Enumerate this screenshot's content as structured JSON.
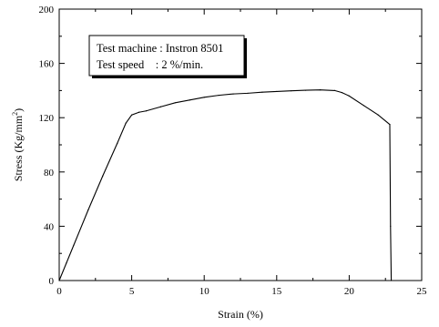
{
  "chart_data": {
    "type": "line",
    "xlabel": "Strain (%)",
    "ylabel": "Stress (Kg/mm",
    "ylabel_sup": "2",
    "ylabel_close": ")",
    "xlim": [
      0,
      25
    ],
    "ylim": [
      0,
      200
    ],
    "x_ticks": [
      0,
      5,
      10,
      15,
      20,
      25
    ],
    "y_ticks": [
      0,
      40,
      80,
      120,
      160,
      200
    ],
    "grid": false,
    "legend_position": "top-left",
    "annotation": {
      "line1": "Test machine : Instron 8501",
      "line2": "Test speed    : 2 %/min."
    },
    "series": [
      {
        "x": [
          0,
          0.5,
          1,
          2,
          3,
          4,
          4.6,
          5,
          5.5,
          6,
          7,
          8,
          9,
          10,
          11,
          12,
          13,
          14,
          15,
          16,
          17,
          18,
          19,
          19.5,
          20,
          21,
          22,
          22.8,
          22.85,
          22.9
        ],
        "y": [
          0,
          13,
          26,
          52,
          77,
          101,
          116,
          122,
          124,
          125,
          128,
          131,
          133,
          135,
          136.5,
          137.5,
          138,
          138.8,
          139.3,
          139.8,
          140.2,
          140.5,
          140,
          138.5,
          136,
          129,
          122,
          115,
          40,
          0
        ]
      }
    ]
  }
}
